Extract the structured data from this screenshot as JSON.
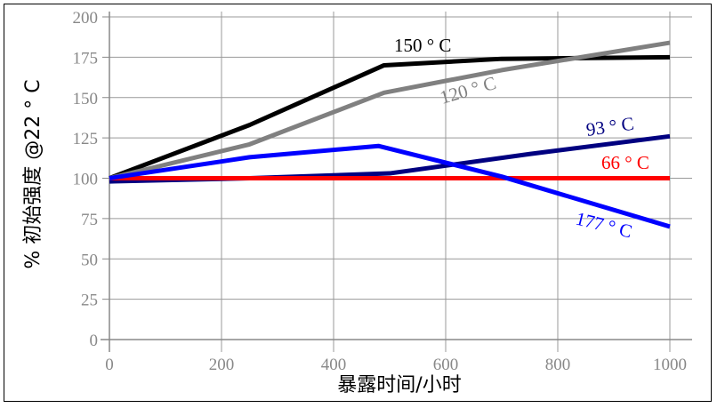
{
  "chart_data": {
    "type": "line",
    "title": "",
    "xlabel": "暴露时间/小时",
    "ylabel": "% 初始强度 @22 ° C",
    "xlim": [
      0,
      1000
    ],
    "ylim": [
      0,
      200
    ],
    "xticks": [
      0,
      200,
      400,
      600,
      800,
      1000
    ],
    "yticks": [
      0,
      25,
      50,
      75,
      100,
      125,
      150,
      175,
      200
    ],
    "grid": true,
    "legend": "inline labels",
    "series": [
      {
        "name": "150 ° C",
        "color": "#000000",
        "x": [
          0,
          250,
          490,
          700,
          1000
        ],
        "y": [
          100,
          133,
          170,
          174,
          175
        ]
      },
      {
        "name": "120 ° C",
        "color": "#808080",
        "x": [
          0,
          250,
          490,
          700,
          1000
        ],
        "y": [
          100,
          121,
          153,
          167,
          184
        ]
      },
      {
        "name": "93 ° C",
        "color": "#000080",
        "x": [
          0,
          250,
          500,
          750,
          1000
        ],
        "y": [
          98,
          100,
          103,
          115,
          126
        ]
      },
      {
        "name": "66 ° C",
        "color": "#ff0000",
        "x": [
          0,
          250,
          500,
          750,
          1000
        ],
        "y": [
          100,
          100,
          100,
          100,
          100
        ]
      },
      {
        "name": "177 ° C",
        "color": "#0000ff",
        "x": [
          0,
          250,
          480,
          700,
          1000
        ],
        "y": [
          100,
          113,
          120,
          101,
          70
        ]
      }
    ]
  }
}
